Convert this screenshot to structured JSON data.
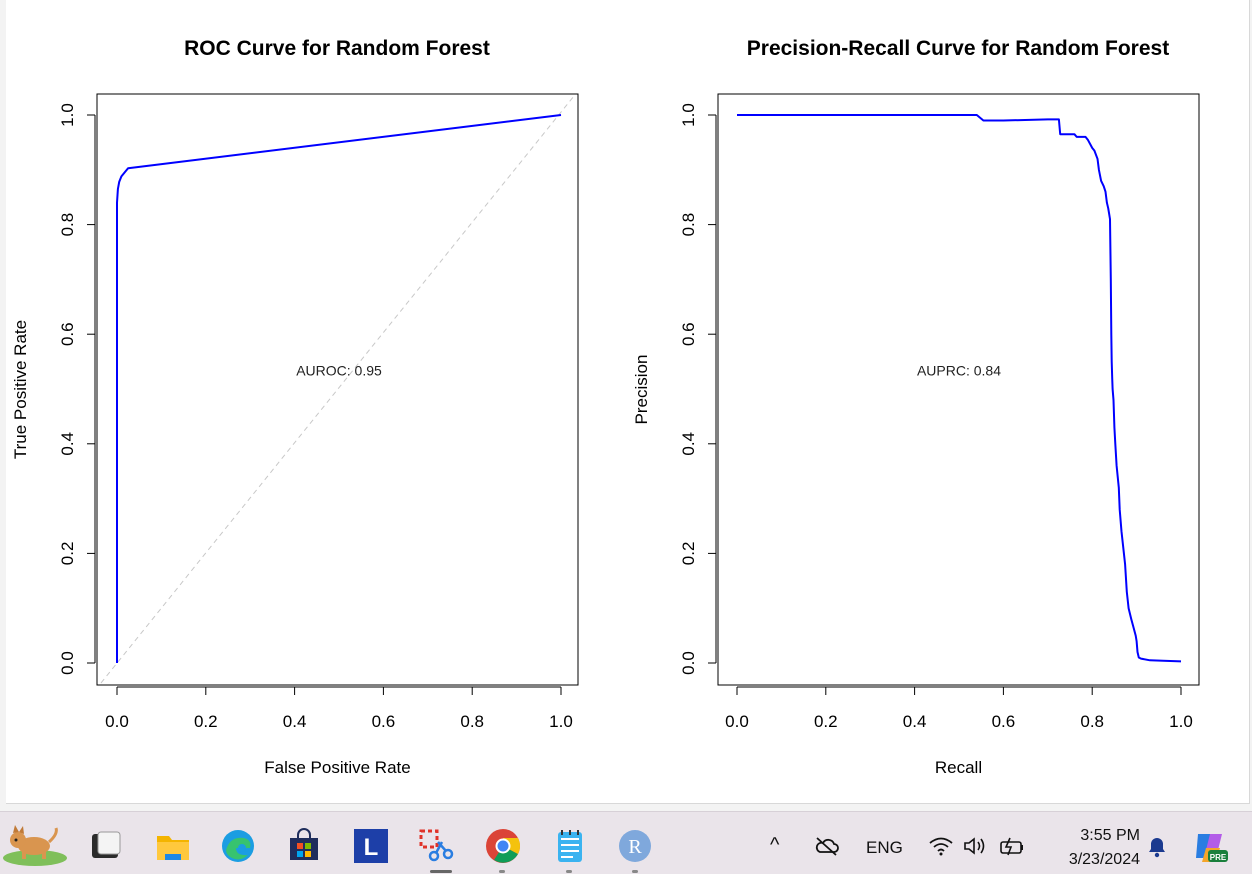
{
  "chart_data": [
    {
      "type": "line",
      "title": "ROC Curve for Random Forest",
      "xlabel": "False Positive Rate",
      "ylabel": "True Positive Rate",
      "xlim": [
        0,
        1
      ],
      "ylim": [
        0,
        1
      ],
      "xticks": [
        "0.0",
        "0.2",
        "0.4",
        "0.6",
        "0.8",
        "1.0"
      ],
      "yticks": [
        "0.0",
        "0.2",
        "0.4",
        "0.6",
        "0.8",
        "1.0"
      ],
      "annotation": "AUROC: 0.95",
      "line_color": "#0000ff",
      "diagonal_reference": true,
      "series": [
        {
          "x": [
            0,
            0,
            0.002,
            0.005,
            0.01,
            0.02,
            0.025,
            1.0
          ],
          "y": [
            0,
            0.84,
            0.865,
            0.878,
            0.888,
            0.898,
            0.903,
            1.0
          ]
        }
      ]
    },
    {
      "type": "line",
      "title": "Precision-Recall Curve for Random Forest",
      "xlabel": "Recall",
      "ylabel": "Precision",
      "xlim": [
        0,
        1
      ],
      "ylim": [
        0,
        1
      ],
      "xticks": [
        "0.0",
        "0.2",
        "0.4",
        "0.6",
        "0.8",
        "1.0"
      ],
      "yticks": [
        "0.0",
        "0.2",
        "0.4",
        "0.6",
        "0.8",
        "1.0"
      ],
      "annotation": "AUPRC: 0.84",
      "line_color": "#0000ff",
      "series": [
        {
          "x": [
            0,
            0.54,
            0.555,
            0.6,
            0.7,
            0.725,
            0.728,
            0.76,
            0.765,
            0.785,
            0.79,
            0.8,
            0.805,
            0.812,
            0.815,
            0.82,
            0.826,
            0.83,
            0.833,
            0.836,
            0.838,
            0.84,
            0.842,
            0.843,
            0.844,
            0.845,
            0.846,
            0.848,
            0.85,
            0.852,
            0.855,
            0.86,
            0.862,
            0.866,
            0.87,
            0.874,
            0.878,
            0.882,
            0.888,
            0.893,
            0.898,
            0.9,
            0.902,
            0.905,
            0.91,
            0.93,
            0.96,
            1.0
          ],
          "y": [
            1.0,
            1.0,
            0.99,
            0.99,
            0.992,
            0.992,
            0.965,
            0.965,
            0.96,
            0.96,
            0.955,
            0.94,
            0.935,
            0.92,
            0.9,
            0.88,
            0.87,
            0.86,
            0.84,
            0.83,
            0.82,
            0.81,
            0.7,
            0.6,
            0.55,
            0.52,
            0.5,
            0.48,
            0.43,
            0.4,
            0.36,
            0.32,
            0.28,
            0.24,
            0.21,
            0.18,
            0.13,
            0.1,
            0.08,
            0.065,
            0.05,
            0.04,
            0.02,
            0.01,
            0.008,
            0.005,
            0.004,
            0.003
          ]
        }
      ]
    }
  ],
  "taskbar": {
    "icons": [
      "dog-widget-icon",
      "terminal-icon",
      "file-explorer-icon",
      "edge-icon",
      "store-icon",
      "l-app-icon",
      "snipping-tool-icon",
      "chrome-icon",
      "notepad-icon",
      "r-icon"
    ],
    "r_letter": "R",
    "l_letter": "L",
    "tray": {
      "chevron": "^",
      "language": "ENG",
      "time": "3:55 PM",
      "date": "3/23/2024",
      "copilot_badge": "PRE"
    }
  }
}
